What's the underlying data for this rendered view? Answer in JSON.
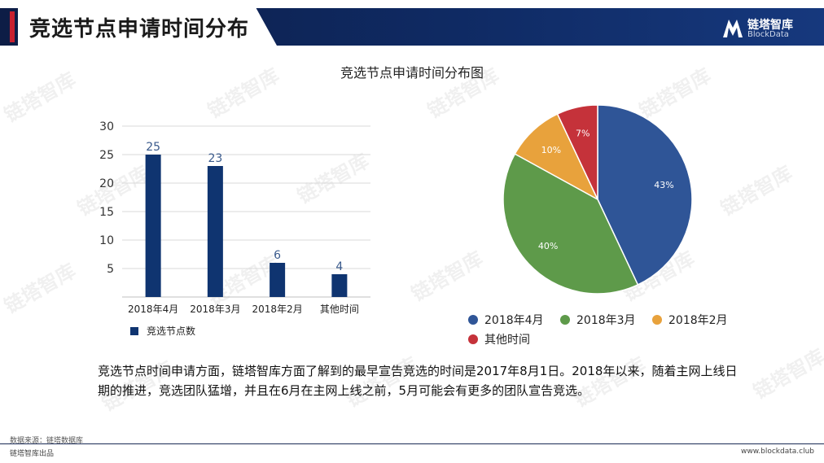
{
  "header": {
    "title": "竞选节点申请时间分布"
  },
  "logo": {
    "name": "链塔智库",
    "sub": "BlockData"
  },
  "watermark": "链塔智库",
  "chart_title": "竞选节点申请时间分布图",
  "chart_data": [
    {
      "type": "bar",
      "categories": [
        "2018年4月",
        "2018年3月",
        "2018年2月",
        "其他时间"
      ],
      "series": [
        {
          "name": "竞选节点数",
          "values": [
            25,
            23,
            6,
            4
          ]
        }
      ],
      "data_labels": [
        "25",
        "23",
        "6",
        "4"
      ],
      "ylim": [
        0,
        30
      ],
      "yticks": [
        "5",
        "10",
        "15",
        "20",
        "25",
        "30"
      ],
      "grid": true,
      "legend": "bottom-left",
      "color": "#0f3470"
    },
    {
      "type": "pie",
      "labels": [
        "2018年4月",
        "2018年3月",
        "2018年2月",
        "其他时间"
      ],
      "values": [
        43,
        40,
        10,
        7
      ],
      "slice_labels": [
        "43%",
        "40%",
        "10%",
        "7%"
      ],
      "colors": [
        "#2f5597",
        "#5e9a4a",
        "#e8a23c",
        "#c5323a"
      ],
      "legend": "bottom"
    }
  ],
  "description": "竞选节点时间申请方面，链塔智库方面了解到的最早宣告竞选的时间是2017年8月1日。2018年以来，随着主网上线日期的推进，竞选团队猛增，并且在6月在主网上线之前，5月可能会有更多的团队宣告竞选。",
  "footer": {
    "source": "数据来源：链塔数据库",
    "left": "链塔智库出品",
    "right": "www.blockdata.club"
  }
}
